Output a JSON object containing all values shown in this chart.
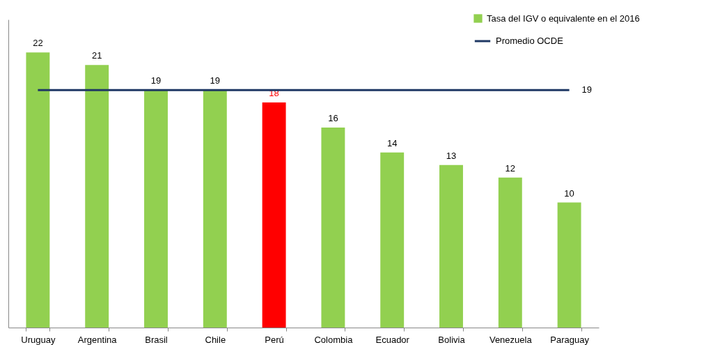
{
  "chart_data": {
    "type": "bar",
    "categories": [
      "Uruguay",
      "Argentina",
      "Brasil",
      "Chile",
      "Perú",
      "Colombia",
      "Ecuador",
      "Bolivia",
      "Venezuela",
      "Paraguay"
    ],
    "series": [
      {
        "name": "Tasa del IGV o equivalente en el 2016",
        "color": "#92d050",
        "colors": [
          "#92d050",
          "#92d050",
          "#92d050",
          "#92d050",
          "#ff0000",
          "#92d050",
          "#92d050",
          "#92d050",
          "#92d050",
          "#92d050"
        ],
        "values": [
          22,
          21,
          19,
          19,
          18,
          16,
          14,
          13,
          12,
          10
        ]
      },
      {
        "name": "Promedio OCDE",
        "type": "line",
        "color": "#1f3864",
        "values": [
          19,
          19,
          19,
          19,
          19,
          19,
          19,
          19,
          19,
          19
        ],
        "value_labels": [
          null,
          null,
          null,
          null,
          null,
          null,
          null,
          null,
          null,
          "19"
        ]
      }
    ],
    "data_labels": true,
    "legend": "top right",
    "tick_labels": "x",
    "grid": false
  }
}
